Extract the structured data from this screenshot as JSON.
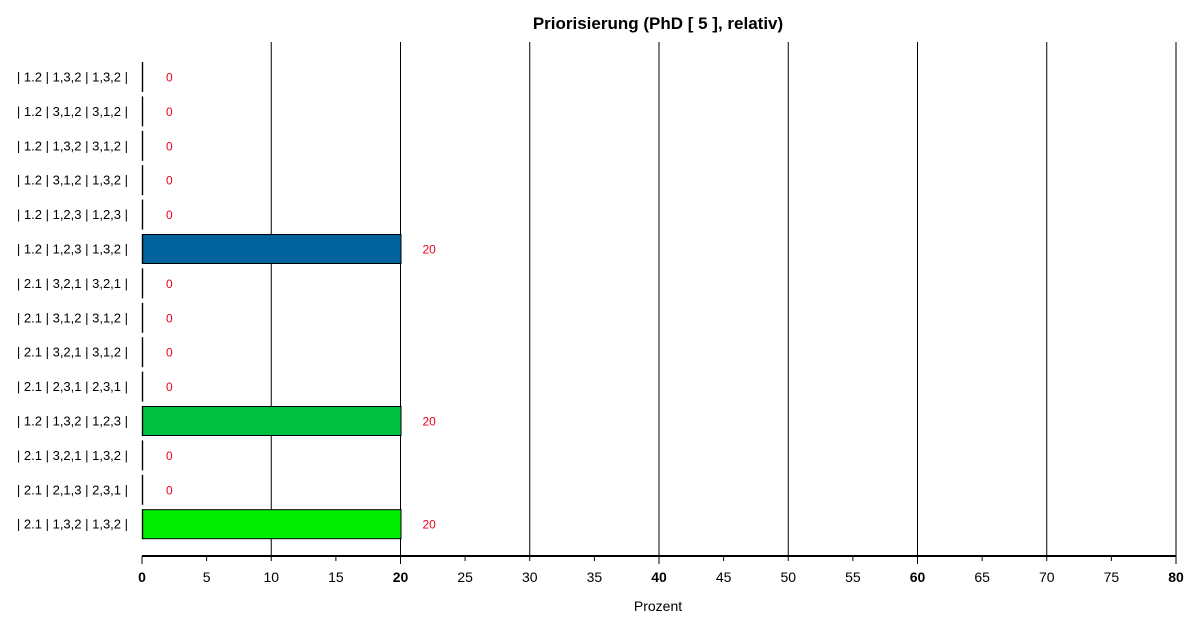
{
  "chart_data": {
    "type": "bar",
    "orientation": "horizontal",
    "title": "Priorisierung (PhD [ 5 ], relativ)",
    "xlabel": "Prozent",
    "xlim": [
      0,
      80
    ],
    "major_gridlines": [
      10,
      20,
      30,
      40,
      50,
      60,
      70,
      80
    ],
    "ticks": [
      0,
      5,
      10,
      15,
      20,
      25,
      30,
      35,
      40,
      45,
      50,
      55,
      60,
      65,
      70,
      75,
      80
    ],
    "bold_ticks": [
      0,
      20,
      40,
      60,
      80
    ],
    "value_label_color": "#e8001c",
    "categories": [
      "| 1.2 | 1,3,2 | 1,3,2 |",
      "| 1.2 | 3,1,2 | 3,1,2 |",
      "| 1.2 | 1,3,2 | 3,1,2 |",
      "| 1.2 | 3,1,2 | 1,3,2 |",
      "| 1.2 | 1,2,3 | 1,2,3 |",
      "| 1.2 | 1,2,3 | 1,3,2 |",
      "| 2.1 | 3,2,1 | 3,2,1 |",
      "| 2.1 | 3,1,2 | 3,1,2 |",
      "| 2.1 | 3,2,1 | 3,1,2 |",
      "| 2.1 | 2,3,1 | 2,3,1 |",
      "| 1.2 | 1,3,2 | 1,2,3 |",
      "| 2.1 | 3,2,1 | 1,3,2 |",
      "| 2.1 | 2,1,3 | 2,3,1 |",
      "| 2.1 | 1,3,2 | 1,3,2 |"
    ],
    "values": [
      0,
      0,
      0,
      0,
      0,
      20,
      0,
      0,
      0,
      0,
      20,
      0,
      0,
      20
    ],
    "colors": [
      "",
      "",
      "",
      "",
      "",
      "#00629b",
      "",
      "",
      "",
      "",
      "#00c13f",
      "",
      "",
      "#00ee00"
    ]
  }
}
